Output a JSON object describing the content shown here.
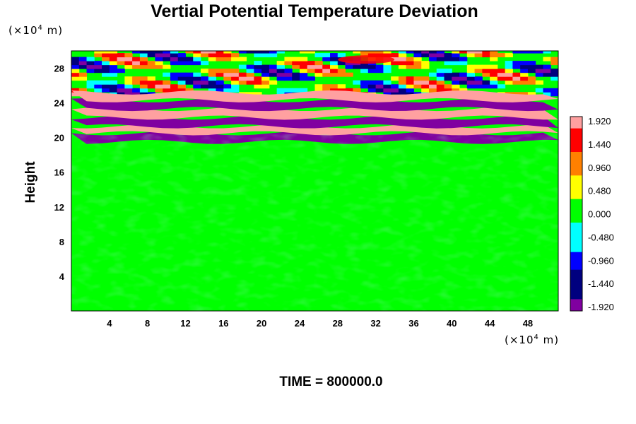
{
  "chart_data": {
    "type": "heatmap",
    "title": "Vertial Potential Temperature Deviation",
    "xlabel": "",
    "ylabel": "Height",
    "x_unit": "m",
    "y_unit": "m",
    "x_multiplier": "4",
    "y_multiplier": "4",
    "xlim": [
      0,
      51.2
    ],
    "ylim": [
      0,
      30
    ],
    "xticks": [
      "4",
      "8",
      "12",
      "16",
      "20",
      "24",
      "28",
      "32",
      "36",
      "40",
      "44",
      "48"
    ],
    "yticks": [
      "4",
      "8",
      "12",
      "16",
      "20",
      "24",
      "28"
    ],
    "colorbar": {
      "vmin": -1.92,
      "vmax": 1.92,
      "tick_labels": [
        "1.920",
        "1.440",
        "0.960",
        "0.480",
        "0.000",
        "-0.480",
        "-0.960",
        "-1.440",
        "-1.920"
      ],
      "colors": [
        "#ffa0a0",
        "#ff0000",
        "#ff8000",
        "#ffff00",
        "#00ff00",
        "#00ffff",
        "#0000ff",
        "#00007f",
        "#8000a0"
      ]
    },
    "features": [
      {
        "band_height": [
          19.5,
          20.5
        ],
        "sign": "negative"
      },
      {
        "band_height": [
          20.5,
          21.3
        ],
        "sign": "positive"
      },
      {
        "band_height": [
          21.3,
          22.3
        ],
        "sign": "negative"
      },
      {
        "band_height": [
          22.3,
          23.3
        ],
        "sign": "positive"
      },
      {
        "band_height": [
          23.3,
          24.3
        ],
        "sign": "negative"
      },
      {
        "band_height": [
          24.3,
          25.2
        ],
        "sign": "positive"
      }
    ],
    "footer": "TIME = 800000.0"
  }
}
